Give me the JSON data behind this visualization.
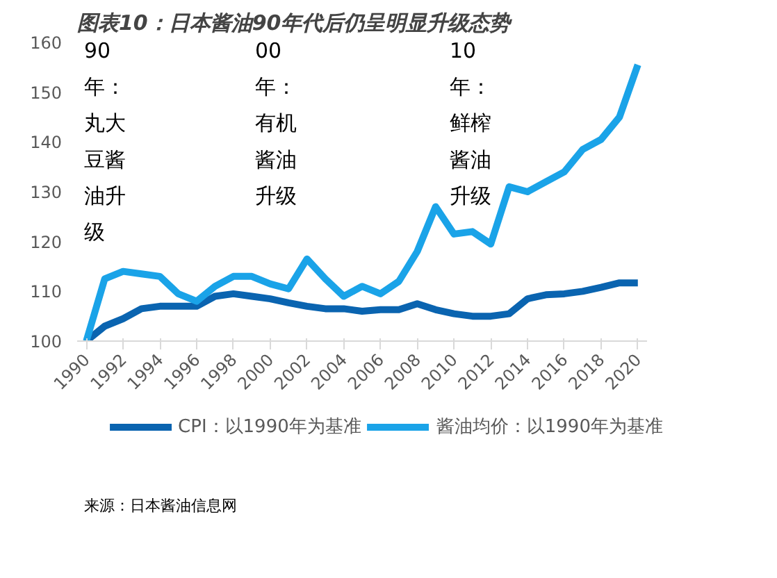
{
  "chart_data": {
    "type": "line",
    "title": "图表10：日本酱油90年代后仍呈明显升级态势",
    "x": [
      1990,
      1991,
      1992,
      1993,
      1994,
      1995,
      1996,
      1997,
      1998,
      1999,
      2000,
      2001,
      2002,
      2003,
      2004,
      2005,
      2006,
      2007,
      2008,
      2009,
      2010,
      2011,
      2012,
      2013,
      2014,
      2015,
      2016,
      2017,
      2018,
      2019,
      2020
    ],
    "series": [
      {
        "name": "CPI：以1990年为基准",
        "color": "#0a64b0",
        "values": [
          100,
          103,
          104.5,
          106.5,
          107,
          107,
          107,
          109,
          109.5,
          109,
          108.5,
          107.7,
          107,
          106.5,
          106.5,
          106,
          106.3,
          106.3,
          107.5,
          106.3,
          105.5,
          105,
          105,
          105.5,
          108.5,
          109.3,
          109.5,
          110,
          110.8,
          111.7,
          111.7
        ]
      },
      {
        "name": "酱油均价：以1990年为基准",
        "color": "#1aa3e8",
        "values": [
          100,
          112.5,
          114,
          113.5,
          113,
          109.5,
          108,
          111,
          113,
          113,
          111.5,
          110.5,
          116.5,
          112.5,
          109,
          111,
          109.5,
          112,
          118,
          127,
          121.5,
          122,
          119.5,
          131,
          130,
          132,
          134,
          138.5,
          140.5,
          145,
          155.5
        ]
      }
    ],
    "xlim": [
      1989.5,
      2020.5
    ],
    "xticks": [
      1990,
      1992,
      1994,
      1996,
      1998,
      2000,
      2002,
      2004,
      2006,
      2008,
      2010,
      2012,
      2014,
      2016,
      2018,
      2020
    ],
    "ylim": [
      100,
      160
    ],
    "yticks": [
      100,
      110,
      120,
      130,
      140,
      150,
      160
    ],
    "grid": false,
    "legend": "bottom",
    "marker": "none",
    "line_style": "solid",
    "annotations": [
      "90年：丸大豆酱油升级",
      "00年：有机酱油升级",
      "10年：鲜榨酱油升级",
      "来源：日本酱油信息网"
    ]
  }
}
